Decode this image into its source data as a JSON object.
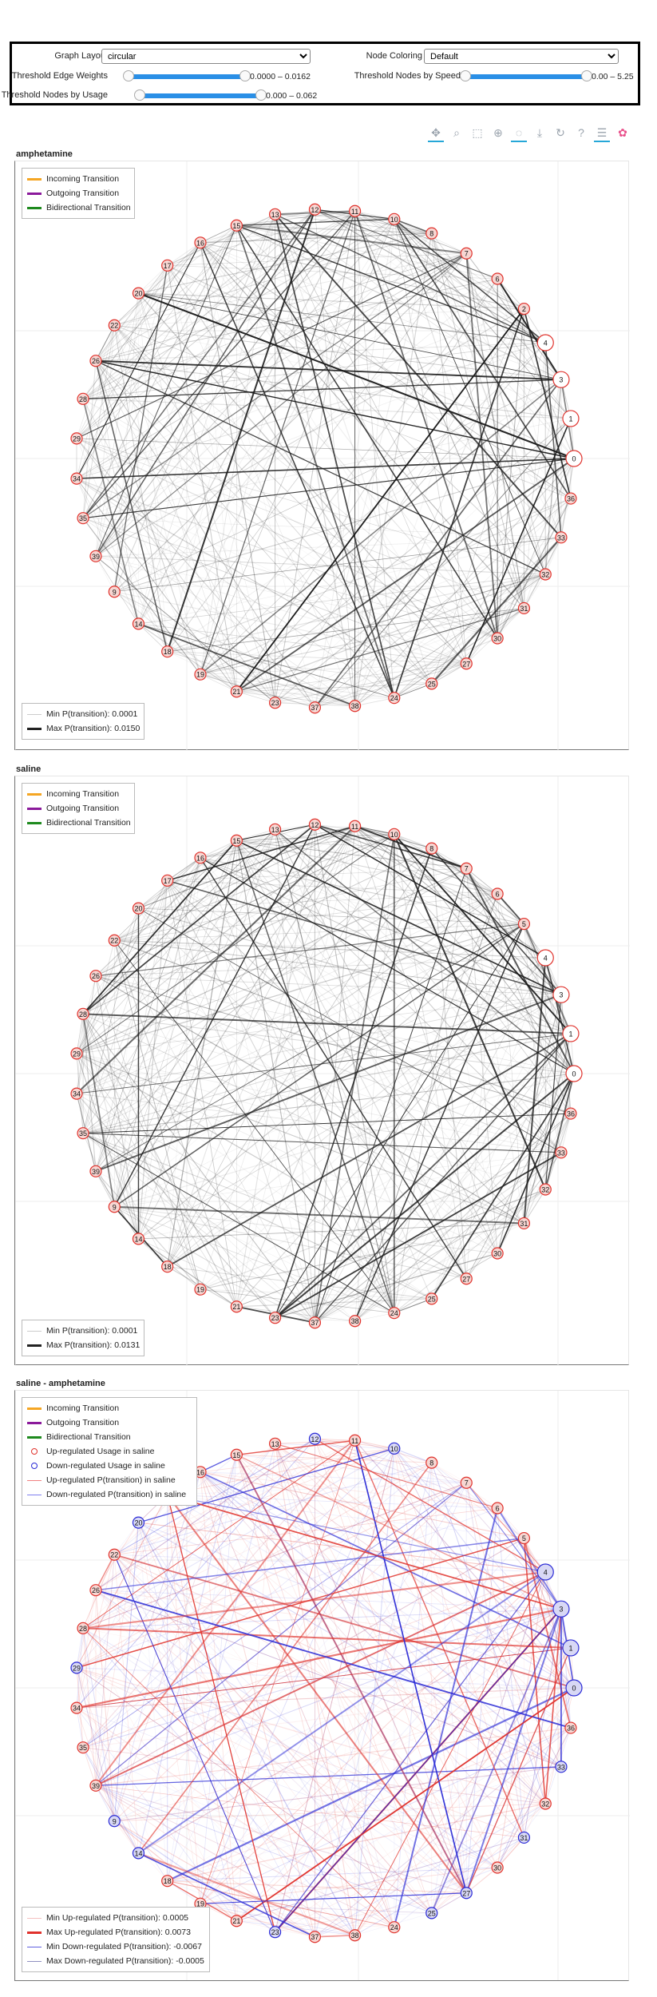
{
  "controls": {
    "graph_layout": {
      "label": "Graph Layout",
      "value": "circular"
    },
    "node_coloring": {
      "label": "Node Coloring",
      "value": "Default"
    },
    "threshold_edge_weights": {
      "label": "Threshold Edge Weights",
      "value_text": "0.0000 – 0.0162",
      "range_fraction": [
        0.0,
        1.0
      ]
    },
    "threshold_nodes_by_speed": {
      "label": "Threshold Nodes by Speed",
      "value_text": "0.00 – 5.25",
      "range_fraction": [
        0.0,
        1.0
      ]
    },
    "threshold_nodes_by_usage": {
      "label": "Threshold Nodes by Usage",
      "value_text": "0.000 – 0.062",
      "range_fraction": [
        0.0,
        1.0
      ]
    }
  },
  "toolbar": {
    "tools": [
      {
        "name": "pan-tool",
        "glyph": "✥",
        "active": true
      },
      {
        "name": "box-zoom-tool",
        "glyph": "⌕",
        "active": false
      },
      {
        "name": "box-select-tool",
        "glyph": "⬚",
        "active": false
      },
      {
        "name": "wheel-zoom-tool",
        "glyph": "⊕",
        "active": false
      },
      {
        "name": "lasso-tool",
        "glyph": "◌",
        "active": true
      },
      {
        "name": "save-tool",
        "glyph": "⤓",
        "active": false
      },
      {
        "name": "reset-tool",
        "glyph": "↻",
        "active": false
      },
      {
        "name": "help-tool",
        "glyph": "?",
        "active": false
      },
      {
        "name": "hover-tool",
        "glyph": "☰",
        "active": true
      },
      {
        "name": "bokeh-logo",
        "glyph": "✿",
        "active": false
      }
    ]
  },
  "colors": {
    "incoming": "#f5a623",
    "outgoing": "#8b1a9b",
    "bidirectional": "#1e8a1e",
    "node_red": "#e0322c",
    "node_blue": "#2b2bd6",
    "node_fill_red": "#f7d6d2",
    "node_fill_blue": "#d8d8f5"
  },
  "panels": [
    {
      "title": "amphetamine",
      "legend": [
        {
          "kind": "line",
          "color": "#f5a623",
          "label": "Incoming Transition"
        },
        {
          "kind": "line",
          "color": "#8b1a9b",
          "label": "Outgoing Transition"
        },
        {
          "kind": "line",
          "color": "#1e8a1e",
          "label": "Bidirectional Transition"
        }
      ],
      "stats_legend": [
        {
          "kind": "thin",
          "color": "#cccccc",
          "label": "Min P(transition): 0.0001"
        },
        {
          "kind": "line",
          "color": "#222222",
          "label": "Max P(transition): 0.0150"
        }
      ],
      "nodes": [
        "0",
        "1",
        "3",
        "4",
        "2",
        "6",
        "7",
        "8",
        "10",
        "11",
        "12",
        "13",
        "15",
        "16",
        "17",
        "20",
        "22",
        "26",
        "28",
        "29",
        "34",
        "35",
        "39",
        "9",
        "14",
        "18",
        "19",
        "21",
        "23",
        "37",
        "38",
        "24",
        "25",
        "27",
        "30",
        "31",
        "32",
        "33",
        "36"
      ]
    },
    {
      "title": "saline",
      "legend": [
        {
          "kind": "line",
          "color": "#f5a623",
          "label": "Incoming Transition"
        },
        {
          "kind": "line",
          "color": "#8b1a9b",
          "label": "Outgoing Transition"
        },
        {
          "kind": "line",
          "color": "#1e8a1e",
          "label": "Bidirectional Transition"
        }
      ],
      "stats_legend": [
        {
          "kind": "thin",
          "color": "#cccccc",
          "label": "Min P(transition): 0.0001"
        },
        {
          "kind": "line",
          "color": "#222222",
          "label": "Max P(transition): 0.0131"
        }
      ],
      "nodes": [
        "0",
        "1",
        "3",
        "4",
        "5",
        "6",
        "7",
        "8",
        "10",
        "11",
        "12",
        "13",
        "15",
        "16",
        "17",
        "20",
        "22",
        "26",
        "28",
        "29",
        "34",
        "35",
        "39",
        "9",
        "14",
        "18",
        "19",
        "21",
        "23",
        "37",
        "38",
        "24",
        "25",
        "27",
        "30",
        "31",
        "32",
        "33",
        "36"
      ]
    },
    {
      "title": "saline - amphetamine",
      "legend": [
        {
          "kind": "line",
          "color": "#f5a623",
          "label": "Incoming Transition"
        },
        {
          "kind": "line",
          "color": "#8b1a9b",
          "label": "Outgoing Transition"
        },
        {
          "kind": "line",
          "color": "#1e8a1e",
          "label": "Bidirectional Transition"
        },
        {
          "kind": "circ",
          "color": "#e0322c",
          "label": "Up-regulated Usage in saline"
        },
        {
          "kind": "circ",
          "color": "#2b2bd6",
          "label": "Down-regulated Usage in saline"
        },
        {
          "kind": "thin",
          "color": "#f08080",
          "label": "Up-regulated P(transition) in saline"
        },
        {
          "kind": "thin",
          "color": "#8080f0",
          "label": "Down-regulated P(transition) in saline"
        }
      ],
      "stats_legend": [
        {
          "kind": "thin",
          "color": "#f5c0c0",
          "label": "Min Up-regulated P(transition): 0.0005"
        },
        {
          "kind": "line",
          "color": "#e0322c",
          "label": "Max Up-regulated P(transition): 0.0073"
        },
        {
          "kind": "thin",
          "color": "#6060e0",
          "label": "Min Down-regulated P(transition): -0.0067"
        },
        {
          "kind": "thin",
          "color": "#9090c0",
          "label": "Max Down-regulated P(transition): -0.0005"
        }
      ],
      "nodes": [
        "0",
        "1",
        "3",
        "4",
        "5",
        "6",
        "7",
        "8",
        "10",
        "11",
        "12",
        "13",
        "15",
        "16",
        "17",
        "20",
        "22",
        "26",
        "28",
        "29",
        "34",
        "35",
        "39",
        "9",
        "14",
        "18",
        "19",
        "21",
        "23",
        "37",
        "38",
        "24",
        "25",
        "27",
        "30",
        "31",
        "32",
        "33",
        "36"
      ],
      "down_nodes": [
        "0",
        "1",
        "3",
        "4",
        "10",
        "12",
        "9",
        "14",
        "17",
        "20",
        "23",
        "25",
        "27",
        "29",
        "31",
        "33"
      ]
    }
  ]
}
